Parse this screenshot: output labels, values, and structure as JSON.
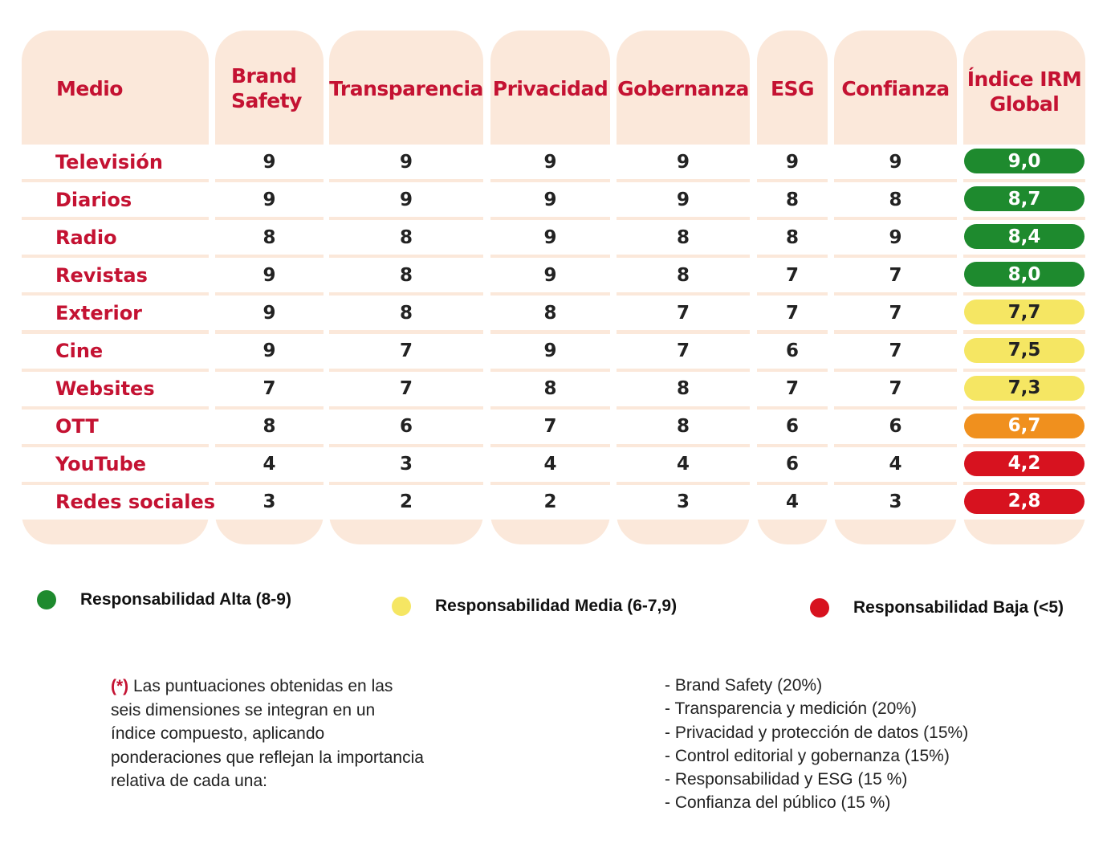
{
  "colors": {
    "accent": "#c41232",
    "column_bg": "#fbe8da",
    "alta": "#1e8a2e",
    "media": "#f5e663",
    "media_low": "#f0901e",
    "baja": "#d7121f"
  },
  "headers": [
    "Medio",
    "Brand Safety",
    "Transparencia",
    "Privacidad",
    "Gobernanza",
    "ESG",
    "Confianza",
    "Índice IRM Global"
  ],
  "rows": [
    {
      "medio": "Televisión",
      "scores": [
        "9",
        "9",
        "9",
        "9",
        "9",
        "9"
      ],
      "index": "9,0",
      "level": "alta"
    },
    {
      "medio": "Diarios",
      "scores": [
        "9",
        "9",
        "9",
        "9",
        "8",
        "8"
      ],
      "index": "8,7",
      "level": "alta"
    },
    {
      "medio": "Radio",
      "scores": [
        "8",
        "8",
        "9",
        "8",
        "8",
        "9"
      ],
      "index": "8,4",
      "level": "alta"
    },
    {
      "medio": "Revistas",
      "scores": [
        "9",
        "8",
        "9",
        "8",
        "7",
        "7"
      ],
      "index": "8,0",
      "level": "alta"
    },
    {
      "medio": "Exterior",
      "scores": [
        "9",
        "8",
        "8",
        "7",
        "7",
        "7"
      ],
      "index": "7,7",
      "level": "media"
    },
    {
      "medio": "Cine",
      "scores": [
        "9",
        "7",
        "9",
        "7",
        "6",
        "7"
      ],
      "index": "7,5",
      "level": "media"
    },
    {
      "medio": "Websites",
      "scores": [
        "7",
        "7",
        "8",
        "8",
        "7",
        "7"
      ],
      "index": "7,3",
      "level": "media"
    },
    {
      "medio": "OTT",
      "scores": [
        "8",
        "6",
        "7",
        "8",
        "6",
        "6"
      ],
      "index": "6,7",
      "level": "media_low"
    },
    {
      "medio": "YouTube",
      "scores": [
        "4",
        "3",
        "4",
        "4",
        "6",
        "4"
      ],
      "index": "4,2",
      "level": "baja"
    },
    {
      "medio": "Redes sociales",
      "scores": [
        "3",
        "2",
        "2",
        "3",
        "4",
        "3"
      ],
      "index": "2,8",
      "level": "baja"
    }
  ],
  "legend": [
    {
      "label": "Responsabilidad Alta (8-9)",
      "color": "#1e8a2e"
    },
    {
      "label": "Responsabilidad Media (6-7,9)",
      "color": "#f5e663"
    },
    {
      "label": "Responsabilidad Baja (<5)",
      "color": "#d7121f"
    }
  ],
  "note": {
    "marker": "(*)",
    "text": " Las puntuaciones obtenidas en las seis dimensiones se integran en un índice compuesto, aplicando ponderaciones que reflejan la importancia relativa de cada una:",
    "weights": [
      "- Brand Safety (20%)",
      "- Transparencia y medición (20%)",
      "- Privacidad y protección de datos (15%)",
      "- Control editorial y gobernanza (15%)",
      "- Responsabilidad y ESG (15 %)",
      "- Confianza del público (15 %)"
    ]
  }
}
